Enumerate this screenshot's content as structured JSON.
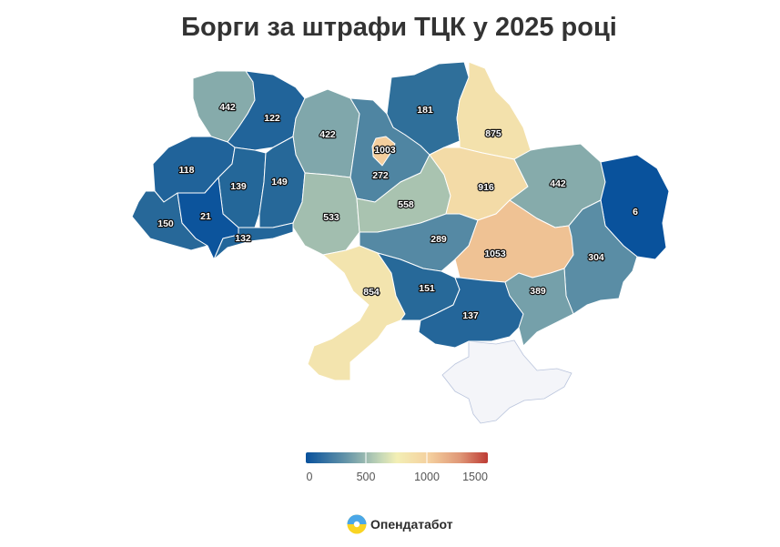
{
  "title": "Борги за штрафи ТЦК у 2025 році",
  "brand": {
    "name": "Опендатабот",
    "logo_icon": "opendatabot-logo-icon"
  },
  "legend": {
    "colors": [
      "#08519c",
      "#2a6b99",
      "#6494a8",
      "#98b7ad",
      "#c9dab7",
      "#f3e7b0",
      "#f4cf9e",
      "#e5a57f",
      "#cf7a5e",
      "#bd3b34"
    ],
    "ticks": [
      "0",
      "500",
      "1000",
      "1500"
    ],
    "min": 0,
    "max": 1500
  },
  "regions": [
    {
      "id": "volyn",
      "value": "442"
    },
    {
      "id": "rivne",
      "value": "122"
    },
    {
      "id": "zhytomyr",
      "value": "422"
    },
    {
      "id": "kyiv-oblast",
      "value": "272"
    },
    {
      "id": "kyiv-city",
      "value": "1003"
    },
    {
      "id": "chernihiv",
      "value": "181"
    },
    {
      "id": "sumy",
      "value": "875"
    },
    {
      "id": "lviv",
      "value": "118"
    },
    {
      "id": "ternopil",
      "value": "139"
    },
    {
      "id": "khmelnytskyi",
      "value": "149"
    },
    {
      "id": "vinnytsia",
      "value": "533"
    },
    {
      "id": "cherkasy",
      "value": "558"
    },
    {
      "id": "poltava",
      "value": "916"
    },
    {
      "id": "kharkiv",
      "value": "442"
    },
    {
      "id": "luhansk",
      "value": "6"
    },
    {
      "id": "zakarpattia",
      "value": "150"
    },
    {
      "id": "ivano-frankivsk",
      "value": "21"
    },
    {
      "id": "chernivtsi",
      "value": "132"
    },
    {
      "id": "kirovohrad",
      "value": "289"
    },
    {
      "id": "dnipropetrovsk",
      "value": "1053"
    },
    {
      "id": "donetsk",
      "value": "304"
    },
    {
      "id": "odesa",
      "value": "854"
    },
    {
      "id": "mykolaiv",
      "value": "151"
    },
    {
      "id": "kherson",
      "value": "137"
    },
    {
      "id": "zaporizhzhia",
      "value": "389"
    },
    {
      "id": "crimea",
      "value": ""
    }
  ]
}
